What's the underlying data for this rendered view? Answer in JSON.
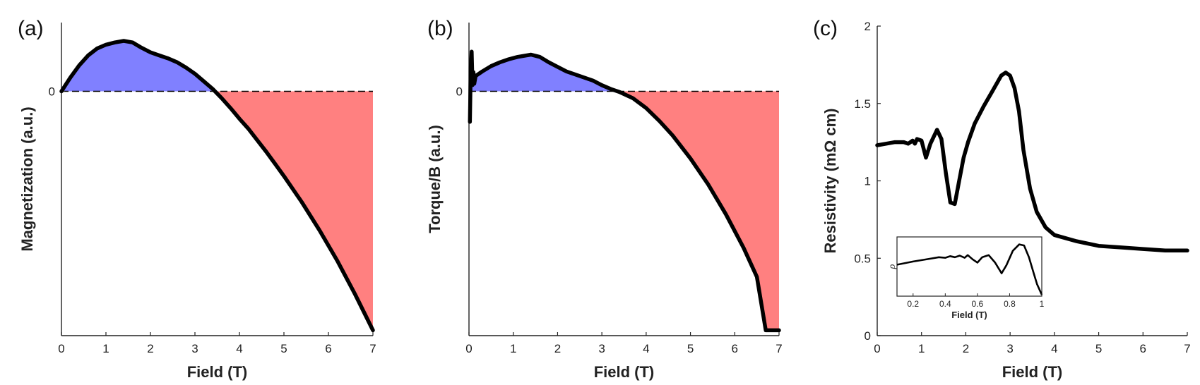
{
  "chart_data": [
    {
      "panel": "(a)",
      "type": "area",
      "xlabel": "Field (T)",
      "ylabel": "Magnetization (a.u.)",
      "xlim": [
        0,
        7
      ],
      "xticks": [
        0,
        1,
        2,
        3,
        4,
        5,
        6,
        7
      ],
      "ylim": [
        -0.32,
        0.09
      ],
      "yticks": [
        {
          "value": 0,
          "label": "0"
        }
      ],
      "zero_line": "dashed",
      "fill_colors": {
        "positive": "#8080ff",
        "negative": "#ff8080"
      },
      "line_color": "#000000",
      "series": [
        {
          "x": [
            0,
            0.2,
            0.4,
            0.6,
            0.8,
            1.0,
            1.2,
            1.4,
            1.6,
            1.8,
            2.0,
            2.2,
            2.4,
            2.6,
            2.8,
            3.0,
            3.2,
            3.4,
            3.6,
            3.8,
            4.0,
            4.2,
            4.4,
            4.6,
            4.8,
            5.0,
            5.4,
            5.8,
            6.2,
            6.6,
            7.0
          ],
          "y": [
            0,
            0.018,
            0.034,
            0.047,
            0.056,
            0.061,
            0.064,
            0.066,
            0.064,
            0.057,
            0.051,
            0.047,
            0.043,
            0.038,
            0.031,
            0.023,
            0.013,
            0.003,
            -0.009,
            -0.022,
            -0.036,
            -0.049,
            -0.064,
            -0.079,
            -0.095,
            -0.111,
            -0.145,
            -0.182,
            -0.222,
            -0.266,
            -0.313
          ]
        }
      ]
    },
    {
      "panel": "(b)",
      "type": "area",
      "xlabel": "Field (T)",
      "ylabel": "Torque/B (a.u.)",
      "xlim": [
        0,
        7
      ],
      "xticks": [
        0,
        1,
        2,
        3,
        4,
        5,
        6,
        7
      ],
      "ylim": [
        -0.32,
        0.09
      ],
      "yticks": [
        {
          "value": 0,
          "label": "0"
        }
      ],
      "zero_line": "dashed",
      "fill_colors": {
        "positive": "#8080ff",
        "negative": "#ff8080"
      },
      "line_color": "#000000",
      "series": [
        {
          "x": [
            0.02,
            0.04,
            0.06,
            0.08,
            0.1,
            0.12,
            0.15,
            0.2,
            0.3,
            0.5,
            0.7,
            0.9,
            1.1,
            1.3,
            1.4,
            1.6,
            1.8,
            2.0,
            2.2,
            2.5,
            2.8,
            3.0,
            3.2,
            3.4,
            3.7,
            4.0,
            4.3,
            4.6,
            5.0,
            5.4,
            5.8,
            6.2,
            6.5,
            6.7,
            7.0
          ],
          "y": [
            -0.04,
            0.03,
            0.052,
            0.008,
            0.025,
            0.01,
            0.02,
            0.022,
            0.026,
            0.033,
            0.038,
            0.042,
            0.045,
            0.047,
            0.048,
            0.045,
            0.038,
            0.032,
            0.026,
            0.02,
            0.014,
            0.008,
            0.003,
            -0.001,
            -0.009,
            -0.022,
            -0.039,
            -0.058,
            -0.088,
            -0.122,
            -0.161,
            -0.205,
            -0.243,
            -0.313,
            -0.313
          ]
        }
      ]
    },
    {
      "panel": "(c)",
      "type": "line",
      "xlabel": "Field (T)",
      "ylabel": "Resistivity (mΩ cm)",
      "xlim": [
        0,
        7
      ],
      "xticks": [
        0,
        1,
        2,
        3,
        4,
        5,
        6,
        7
      ],
      "ylim": [
        0,
        2
      ],
      "yticks": [
        {
          "value": 0,
          "label": "0"
        },
        {
          "value": 0.5,
          "label": "0.5"
        },
        {
          "value": 1,
          "label": "1"
        },
        {
          "value": 1.5,
          "label": "1.5"
        },
        {
          "value": 2,
          "label": "2"
        }
      ],
      "line_color": "#000000",
      "series": [
        {
          "x": [
            0,
            0.2,
            0.4,
            0.6,
            0.7,
            0.8,
            0.85,
            0.9,
            1.0,
            1.1,
            1.2,
            1.35,
            1.45,
            1.55,
            1.65,
            1.75,
            1.85,
            1.95,
            2.05,
            2.2,
            2.4,
            2.6,
            2.8,
            2.9,
            3.0,
            3.1,
            3.2,
            3.3,
            3.45,
            3.6,
            3.8,
            4.0,
            4.5,
            5.0,
            5.5,
            6.0,
            6.5,
            7.0
          ],
          "y": [
            1.23,
            1.24,
            1.25,
            1.25,
            1.24,
            1.26,
            1.24,
            1.27,
            1.26,
            1.15,
            1.24,
            1.33,
            1.27,
            1.05,
            0.86,
            0.85,
            1.0,
            1.15,
            1.25,
            1.37,
            1.48,
            1.58,
            1.68,
            1.7,
            1.68,
            1.6,
            1.45,
            1.2,
            0.95,
            0.8,
            0.7,
            0.65,
            0.61,
            0.58,
            0.57,
            0.56,
            0.55,
            0.55
          ]
        }
      ],
      "inset": {
        "xlabel": "Field (T)",
        "ylabel": "ρ",
        "xlim": [
          0.1,
          1.0
        ],
        "xticks": [
          0.2,
          0.4,
          0.6,
          0.8,
          1
        ],
        "xticklabels": [
          "0.2",
          "0.4",
          "0.6",
          "0.8",
          "1"
        ],
        "ylim": [
          0,
          1
        ],
        "x": [
          0.1,
          0.2,
          0.3,
          0.36,
          0.4,
          0.43,
          0.46,
          0.49,
          0.52,
          0.54,
          0.57,
          0.6,
          0.63,
          0.67,
          0.71,
          0.75,
          0.78,
          0.82,
          0.86,
          0.89,
          0.92,
          0.95,
          0.97,
          1.0
        ],
        "y": [
          0.56,
          0.62,
          0.67,
          0.7,
          0.69,
          0.72,
          0.7,
          0.73,
          0.69,
          0.74,
          0.66,
          0.6,
          0.7,
          0.74,
          0.6,
          0.4,
          0.55,
          0.82,
          0.94,
          0.92,
          0.7,
          0.4,
          0.2,
          0.0
        ]
      }
    }
  ]
}
